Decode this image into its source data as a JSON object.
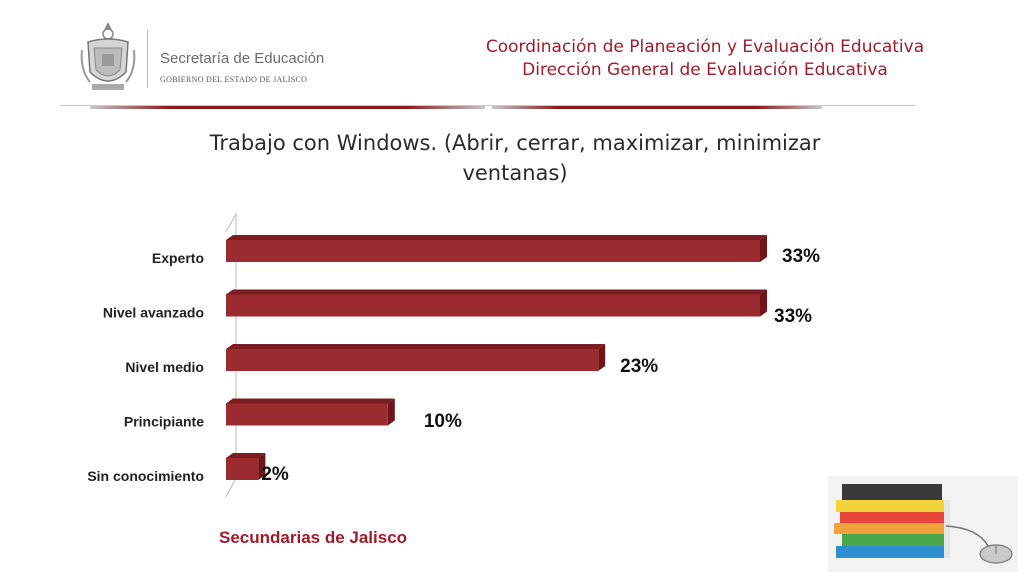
{
  "header": {
    "org_title": "Secretaría de Educación",
    "org_subtitle": "GOBIERNO DEL ESTADO DE JALISCO",
    "coordination": "Coordinación de Planeación y Evaluación Educativa",
    "direction": "Dirección General de Evaluación Educativa"
  },
  "page_title_line1": "Trabajo con Windows. (Abrir, cerrar, maximizar, minimizar",
  "page_title_line2": "ventanas)",
  "footer": "Secundarias de Jalisco",
  "colors": {
    "bar": "#9b2b2e",
    "bar_top": "#7a1c20",
    "accent": "#a01c2a"
  },
  "icons": {
    "logo": "coat-of-arms-icon",
    "decoration": "books-and-mouse-icon"
  },
  "chart_data": {
    "type": "bar",
    "orientation": "horizontal",
    "categories": [
      "Experto",
      "Nivel avanzado",
      "Nivel medio",
      "Principiante",
      "Sin conocimiento"
    ],
    "values": [
      33,
      33,
      23,
      10,
      2
    ],
    "value_labels": [
      "33%",
      "33%",
      "23%",
      "10%",
      "2%"
    ],
    "xlim": [
      0,
      33
    ],
    "grid": false,
    "legend": "none"
  }
}
